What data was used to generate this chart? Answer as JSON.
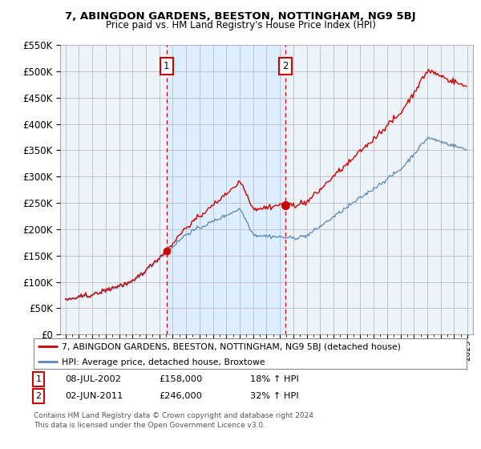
{
  "title": "7, ABINGDON GARDENS, BEESTON, NOTTINGHAM, NG9 5BJ",
  "subtitle": "Price paid vs. HM Land Registry's House Price Index (HPI)",
  "legend_line1": "7, ABINGDON GARDENS, BEESTON, NOTTINGHAM, NG9 5BJ (detached house)",
  "legend_line2": "HPI: Average price, detached house, Broxtowe",
  "annotation1_date": "08-JUL-2002",
  "annotation1_price": 158000,
  "annotation1_price_str": "£158,000",
  "annotation1_hpi": "18% ↑ HPI",
  "annotation2_date": "02-JUN-2011",
  "annotation2_price": 246000,
  "annotation2_price_str": "£246,000",
  "annotation2_hpi": "32% ↑ HPI",
  "footer1": "Contains HM Land Registry data © Crown copyright and database right 2024.",
  "footer2": "This data is licensed under the Open Government Licence v3.0.",
  "red_color": "#cc0000",
  "blue_color": "#5588bb",
  "shade_color": "#ddeeff",
  "background_color": "#ffffff",
  "chart_bg": "#eef3f8",
  "grid_color": "#bbbbcc",
  "ylim": [
    0,
    550000
  ],
  "yticks": [
    0,
    50000,
    100000,
    150000,
    200000,
    250000,
    300000,
    350000,
    400000,
    450000,
    500000,
    550000
  ],
  "sale1_year": 2002.54,
  "sale2_year": 2011.42,
  "sale1_price": 158000,
  "sale2_price": 246000
}
